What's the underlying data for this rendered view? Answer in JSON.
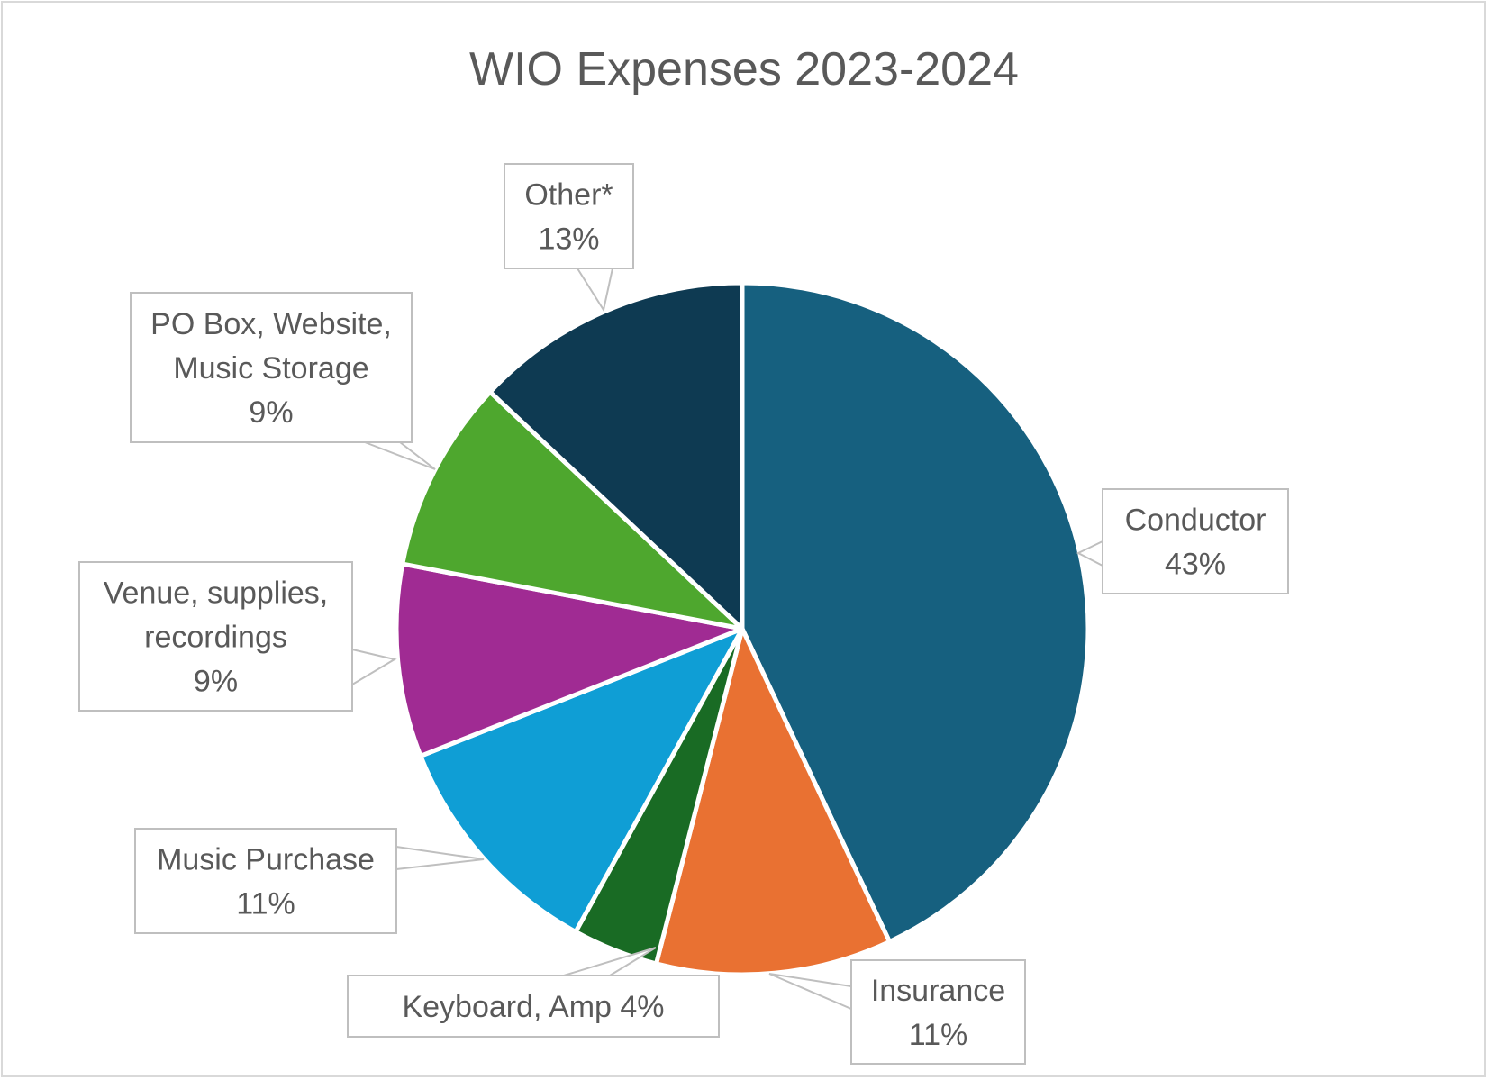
{
  "chart_data": {
    "type": "pie",
    "title": "WIO Expenses 2023-2024",
    "slices": [
      {
        "name": "Conductor",
        "label_lines": [
          "Conductor",
          "43%"
        ],
        "value": 43,
        "color": "#16607f"
      },
      {
        "name": "Insurance",
        "label_lines": [
          "Insurance",
          "11%"
        ],
        "value": 11,
        "color": "#e97132"
      },
      {
        "name": "Keyboard, Amp",
        "label_lines": [
          "Keyboard, Amp  4%"
        ],
        "value": 4,
        "color": "#196b24"
      },
      {
        "name": "Music Purchase",
        "label_lines": [
          "Music Purchase",
          "11%"
        ],
        "value": 11,
        "color": "#0f9ed5"
      },
      {
        "name": "Venue, supplies, recordings",
        "label_lines": [
          "Venue, supplies,",
          "recordings",
          "9%"
        ],
        "value": 9,
        "color": "#a02b93"
      },
      {
        "name": "PO Box, Website, Music Storage",
        "label_lines": [
          "PO Box, Website,",
          "Music Storage",
          "9%"
        ],
        "value": 9,
        "color": "#4ea72e"
      },
      {
        "name": "Other*",
        "label_lines": [
          "Other*",
          "13%"
        ],
        "value": 13,
        "color": "#0e3a52"
      }
    ],
    "start_angle": "12 o'clock",
    "direction": "clockwise",
    "legend": "none",
    "data_labels": "callouts"
  }
}
